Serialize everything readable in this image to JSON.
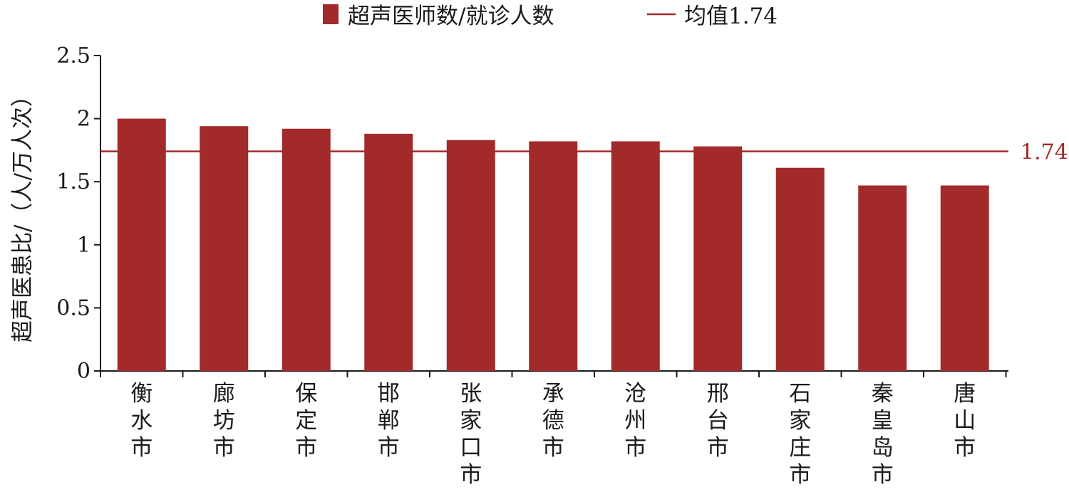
{
  "chart_data": {
    "type": "bar",
    "title": "",
    "xlabel": "",
    "ylabel": "超声医患比/（人/万人次）",
    "ylim": [
      0,
      2.5
    ],
    "yticks": [
      "0",
      "0.5",
      "1",
      "1.5",
      "2",
      "2.5"
    ],
    "categories": [
      "衡水市",
      "廊坊市",
      "保定市",
      "邯郸市",
      "张家口市",
      "承德市",
      "沧州市",
      "邢台市",
      "石家庄市",
      "秦皇岛市",
      "唐山市"
    ],
    "series": [
      {
        "name": "超声医师数/就诊人数",
        "values": [
          2.0,
          1.94,
          1.92,
          1.88,
          1.83,
          1.82,
          1.82,
          1.78,
          1.61,
          1.47,
          1.47
        ],
        "color": "#a22a2a"
      }
    ],
    "reference_line": {
      "name": "均值1.74",
      "value": 1.74,
      "label": "1.74",
      "color": "#a22a2a"
    },
    "legend_position": "top-center",
    "grid": false
  }
}
